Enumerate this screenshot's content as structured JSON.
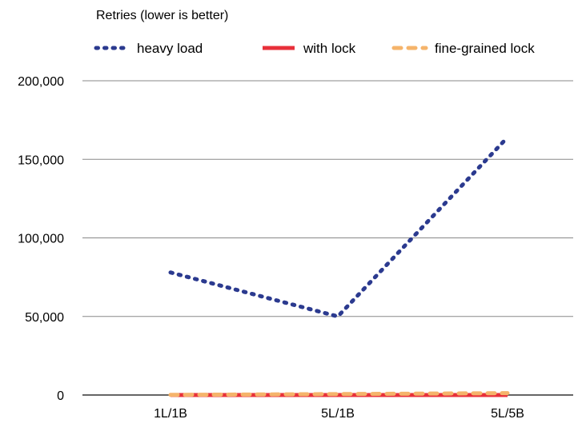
{
  "chart_data": {
    "type": "line",
    "title": "Retries (lower is better)",
    "xlabel": "",
    "ylabel": "",
    "categories": [
      "1L/1B",
      "5L/1B",
      "5L/5B"
    ],
    "ylim": [
      0,
      200000
    ],
    "yticks": [
      0,
      50000,
      100000,
      150000,
      200000
    ],
    "ytick_labels": [
      "0",
      "50,000",
      "100,000",
      "150,000",
      "200,000"
    ],
    "grid": true,
    "legend_position": "top",
    "series": [
      {
        "name": "heavy load",
        "values": [
          78000,
          50000,
          164000
        ],
        "color": "#2B3A8F",
        "style": "dotted"
      },
      {
        "name": "with lock",
        "values": [
          0,
          0,
          0
        ],
        "color": "#E8303A",
        "style": "solid"
      },
      {
        "name": "fine-grained lock",
        "values": [
          100,
          600,
          1200
        ],
        "color": "#F5B46B",
        "style": "dashed"
      }
    ]
  }
}
